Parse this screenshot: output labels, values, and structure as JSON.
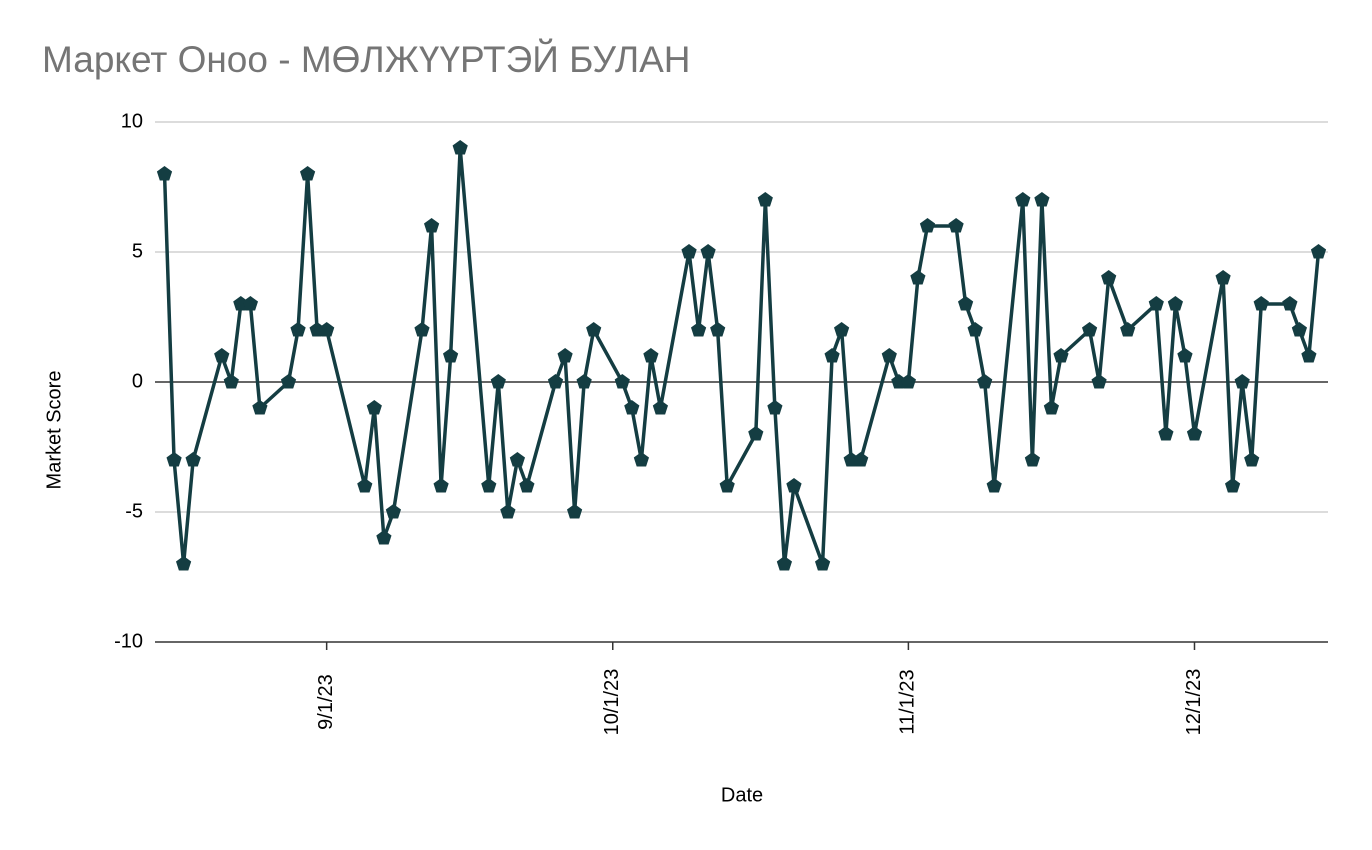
{
  "chart_data": {
    "type": "line",
    "title": "Маркет Оноо - МӨЛЖҮҮРТЭЙ БУЛАН",
    "x_label": "Date",
    "y_label": "Market Score",
    "x": [
      "8/15/23",
      "8/16/23",
      "8/17/23",
      "8/18/23",
      "8/21/23",
      "8/22/23",
      "8/23/23",
      "8/24/23",
      "8/25/23",
      "8/28/23",
      "8/29/23",
      "8/30/23",
      "8/31/23",
      "9/1/23",
      "9/5/23",
      "9/6/23",
      "9/7/23",
      "9/8/23",
      "9/11/23",
      "9/12/23",
      "9/13/23",
      "9/14/23",
      "9/15/23",
      "9/18/23",
      "9/19/23",
      "9/20/23",
      "9/21/23",
      "9/22/23",
      "9/25/23",
      "9/26/23",
      "9/27/23",
      "9/28/23",
      "9/29/23",
      "10/2/23",
      "10/3/23",
      "10/4/23",
      "10/5/23",
      "10/6/23",
      "10/9/23",
      "10/10/23",
      "10/11/23",
      "10/12/23",
      "10/13/23",
      "10/16/23",
      "10/17/23",
      "10/18/23",
      "10/19/23",
      "10/20/23",
      "10/23/23",
      "10/24/23",
      "10/25/23",
      "10/26/23",
      "10/27/23",
      "10/30/23",
      "10/31/23",
      "11/1/23",
      "11/2/23",
      "11/3/23",
      "11/6/23",
      "11/7/23",
      "11/8/23",
      "11/9/23",
      "11/10/23",
      "11/13/23",
      "11/14/23",
      "11/15/23",
      "11/16/23",
      "11/17/23",
      "11/20/23",
      "11/21/23",
      "11/22/23",
      "11/24/23",
      "11/27/23",
      "11/28/23",
      "11/29/23",
      "11/30/23",
      "12/1/23",
      "12/4/23",
      "12/5/23",
      "12/6/23",
      "12/7/23",
      "12/8/23",
      "12/11/23",
      "12/12/23",
      "12/13/23",
      "12/14/23"
    ],
    "series": [
      {
        "name": "Market Score",
        "color": "#143d42",
        "values": [
          8,
          -3,
          -7,
          -3,
          1,
          0,
          3,
          3,
          -1,
          0,
          2,
          8,
          2,
          2,
          -4,
          -1,
          -6,
          -5,
          2,
          6,
          -4,
          1,
          9,
          -4,
          0,
          -5,
          -3,
          -4,
          0,
          1,
          -5,
          0,
          2,
          0,
          -1,
          -3,
          1,
          -1,
          5,
          2,
          5,
          2,
          -4,
          -2,
          7,
          -1,
          -7,
          -4,
          -7,
          1,
          2,
          -3,
          -3,
          1,
          0,
          0,
          4,
          6,
          6,
          3,
          2,
          0,
          -4,
          7,
          -3,
          7,
          -1,
          1,
          2,
          0,
          4,
          2,
          3,
          -2,
          3,
          1,
          -2,
          4,
          -4,
          0,
          -3,
          3,
          3,
          2,
          1,
          5
        ]
      }
    ],
    "xlim": [
      "8/14/23",
      "12/15/23"
    ],
    "xticks": [
      "9/1/23",
      "10/1/23",
      "11/1/23",
      "12/1/23"
    ],
    "ylim": [
      -10,
      10
    ],
    "yticks": [
      -10,
      -5,
      0,
      5,
      10
    ],
    "grid": true
  }
}
